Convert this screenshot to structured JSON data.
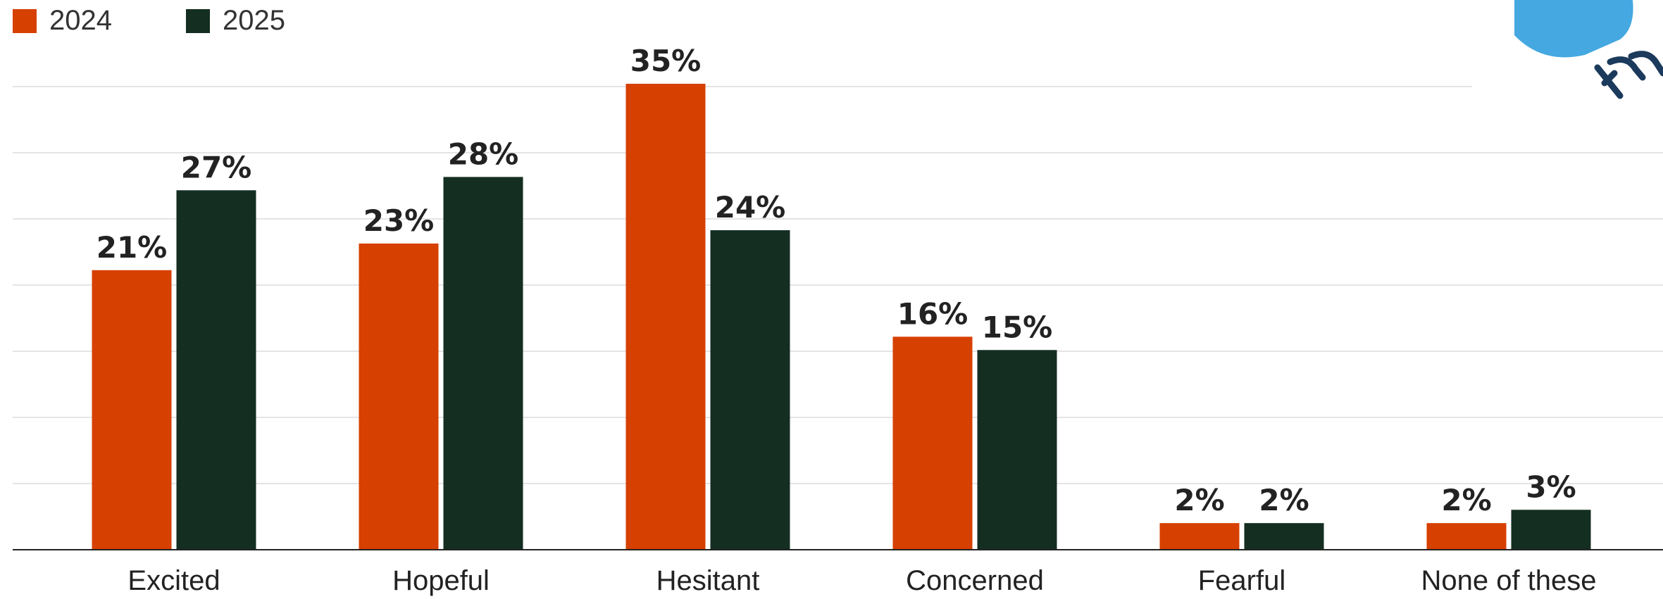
{
  "colors": {
    "series_2024": "#d64000",
    "series_2025": "#142e22",
    "grid": "#e4e4e4",
    "axis": "#222222",
    "logo_blue": "#45a8e0",
    "logo_dark": "#1b3a5c"
  },
  "logo": {
    "icon": "brand-logo-partial"
  },
  "chart_data": {
    "type": "bar",
    "categories": [
      "Excited",
      "Hopeful",
      "Hesitant",
      "Concerned",
      "Fearful",
      "None of these"
    ],
    "series": [
      {
        "name": "2024",
        "values": [
          21,
          23,
          35,
          16,
          2,
          2
        ],
        "labels": [
          "21%",
          "23%",
          "35%",
          "16%",
          "2%",
          "2%"
        ]
      },
      {
        "name": "2025",
        "values": [
          27,
          28,
          24,
          15,
          2,
          3
        ],
        "labels": [
          "27%",
          "28%",
          "24%",
          "15%",
          "2%",
          "3%"
        ]
      }
    ],
    "ylim": [
      0,
      35
    ],
    "grid": true,
    "legend": "top-left",
    "title": "",
    "xlabel": "",
    "ylabel": ""
  }
}
